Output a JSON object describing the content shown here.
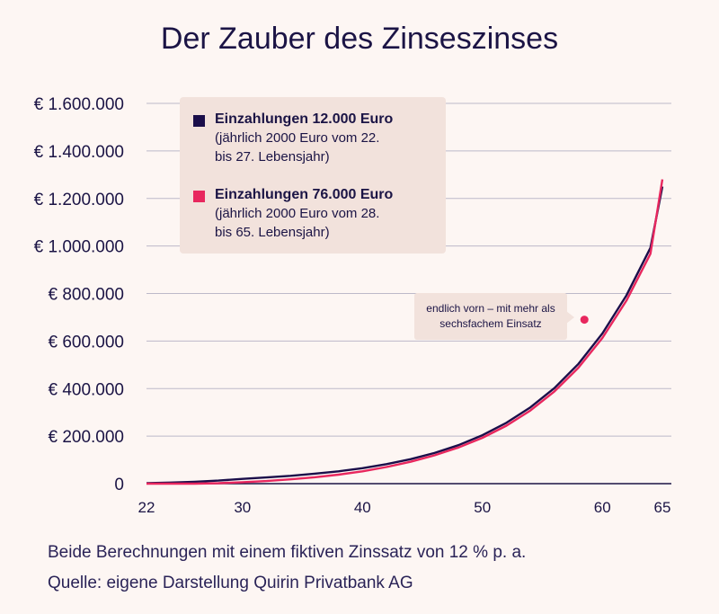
{
  "chart_data": {
    "type": "line",
    "title": "Der Zauber des Zinseszinses",
    "x_ticks": [
      22,
      30,
      40,
      50,
      60,
      65
    ],
    "xlim": [
      22,
      65
    ],
    "ylim": [
      0,
      1600000
    ],
    "y_ticks": [
      {
        "value": 0,
        "label": "0"
      },
      {
        "value": 200000,
        "label": "€ 200.000"
      },
      {
        "value": 400000,
        "label": "€ 400.000"
      },
      {
        "value": 600000,
        "label": "€ 600.000"
      },
      {
        "value": 800000,
        "label": "€ 800.000"
      },
      {
        "value": 1000000,
        "label": "€ 1.000.000"
      },
      {
        "value": 1200000,
        "label": "€ 1.200.000"
      },
      {
        "value": 1400000,
        "label": "€ 1.400.000"
      },
      {
        "value": 1600000,
        "label": "€ 1.600.000"
      }
    ],
    "grid": "horizontal",
    "legend_position": "top-left",
    "series": [
      {
        "name": "Einzahlungen 12.000 Euro",
        "description": "(jährlich 2000 Euro vom 22.\nbis 27. Lebensjahr)",
        "color": "#1b0e4a",
        "x": [
          22,
          24,
          26,
          28,
          30,
          32,
          34,
          36,
          38,
          40,
          42,
          44,
          46,
          48,
          50,
          52,
          54,
          56,
          58,
          60,
          62,
          64,
          65
        ],
        "y": [
          2000,
          4500,
          8000,
          13000,
          20000,
          26000,
          33000,
          42000,
          52000,
          65000,
          82000,
          103000,
          129000,
          162000,
          204000,
          256000,
          321000,
          402000,
          504000,
          632000,
          792000,
          992000,
          1250000
        ]
      },
      {
        "name": "Einzahlungen 76.000 Euro",
        "description": "(jährlich 2000 Euro vom 28.\nbis 65. Lebensjahr)",
        "color": "#e8275e",
        "x": [
          22,
          24,
          26,
          28,
          30,
          32,
          34,
          36,
          38,
          40,
          42,
          44,
          46,
          48,
          50,
          52,
          54,
          56,
          58,
          60,
          62,
          64,
          65
        ],
        "y": [
          0,
          0,
          0,
          2000,
          6000,
          11000,
          18000,
          27000,
          38000,
          52000,
          70000,
          92000,
          119000,
          152000,
          193000,
          244000,
          308000,
          388000,
          488000,
          613000,
          770000,
          967000,
          1280000
        ]
      }
    ],
    "annotation": {
      "text": "endlich vorn – mit mehr als sechsfachem Einsatz",
      "x": 58.5,
      "y": 690000
    }
  },
  "footer": {
    "line1": "Beide Berechnungen mit einem fiktiven Zinssatz von 12 % p. a.",
    "line2": "Quelle: eigene Darstellung Quirin Privatbank AG"
  }
}
